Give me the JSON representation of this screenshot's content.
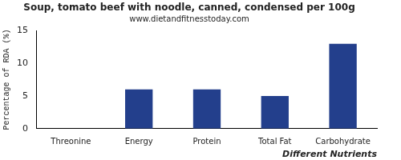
{
  "chart_data": {
    "type": "bar",
    "title": "Soup, tomato beef with noodle, canned, condensed per 100g",
    "subtitle": "www.dietandfitnesstoday.com",
    "x_label": "Different Nutrients",
    "y_label": "Percentage of RDA (%)",
    "categories": [
      "Threonine",
      "Energy",
      "Protein",
      "Total Fat",
      "Carbohydrate"
    ],
    "values": [
      0,
      6,
      6,
      5,
      13
    ],
    "color": "#233f8c",
    "ylim": [
      0,
      15
    ],
    "yticks": [
      0,
      5,
      10,
      15
    ],
    "grid": false
  }
}
